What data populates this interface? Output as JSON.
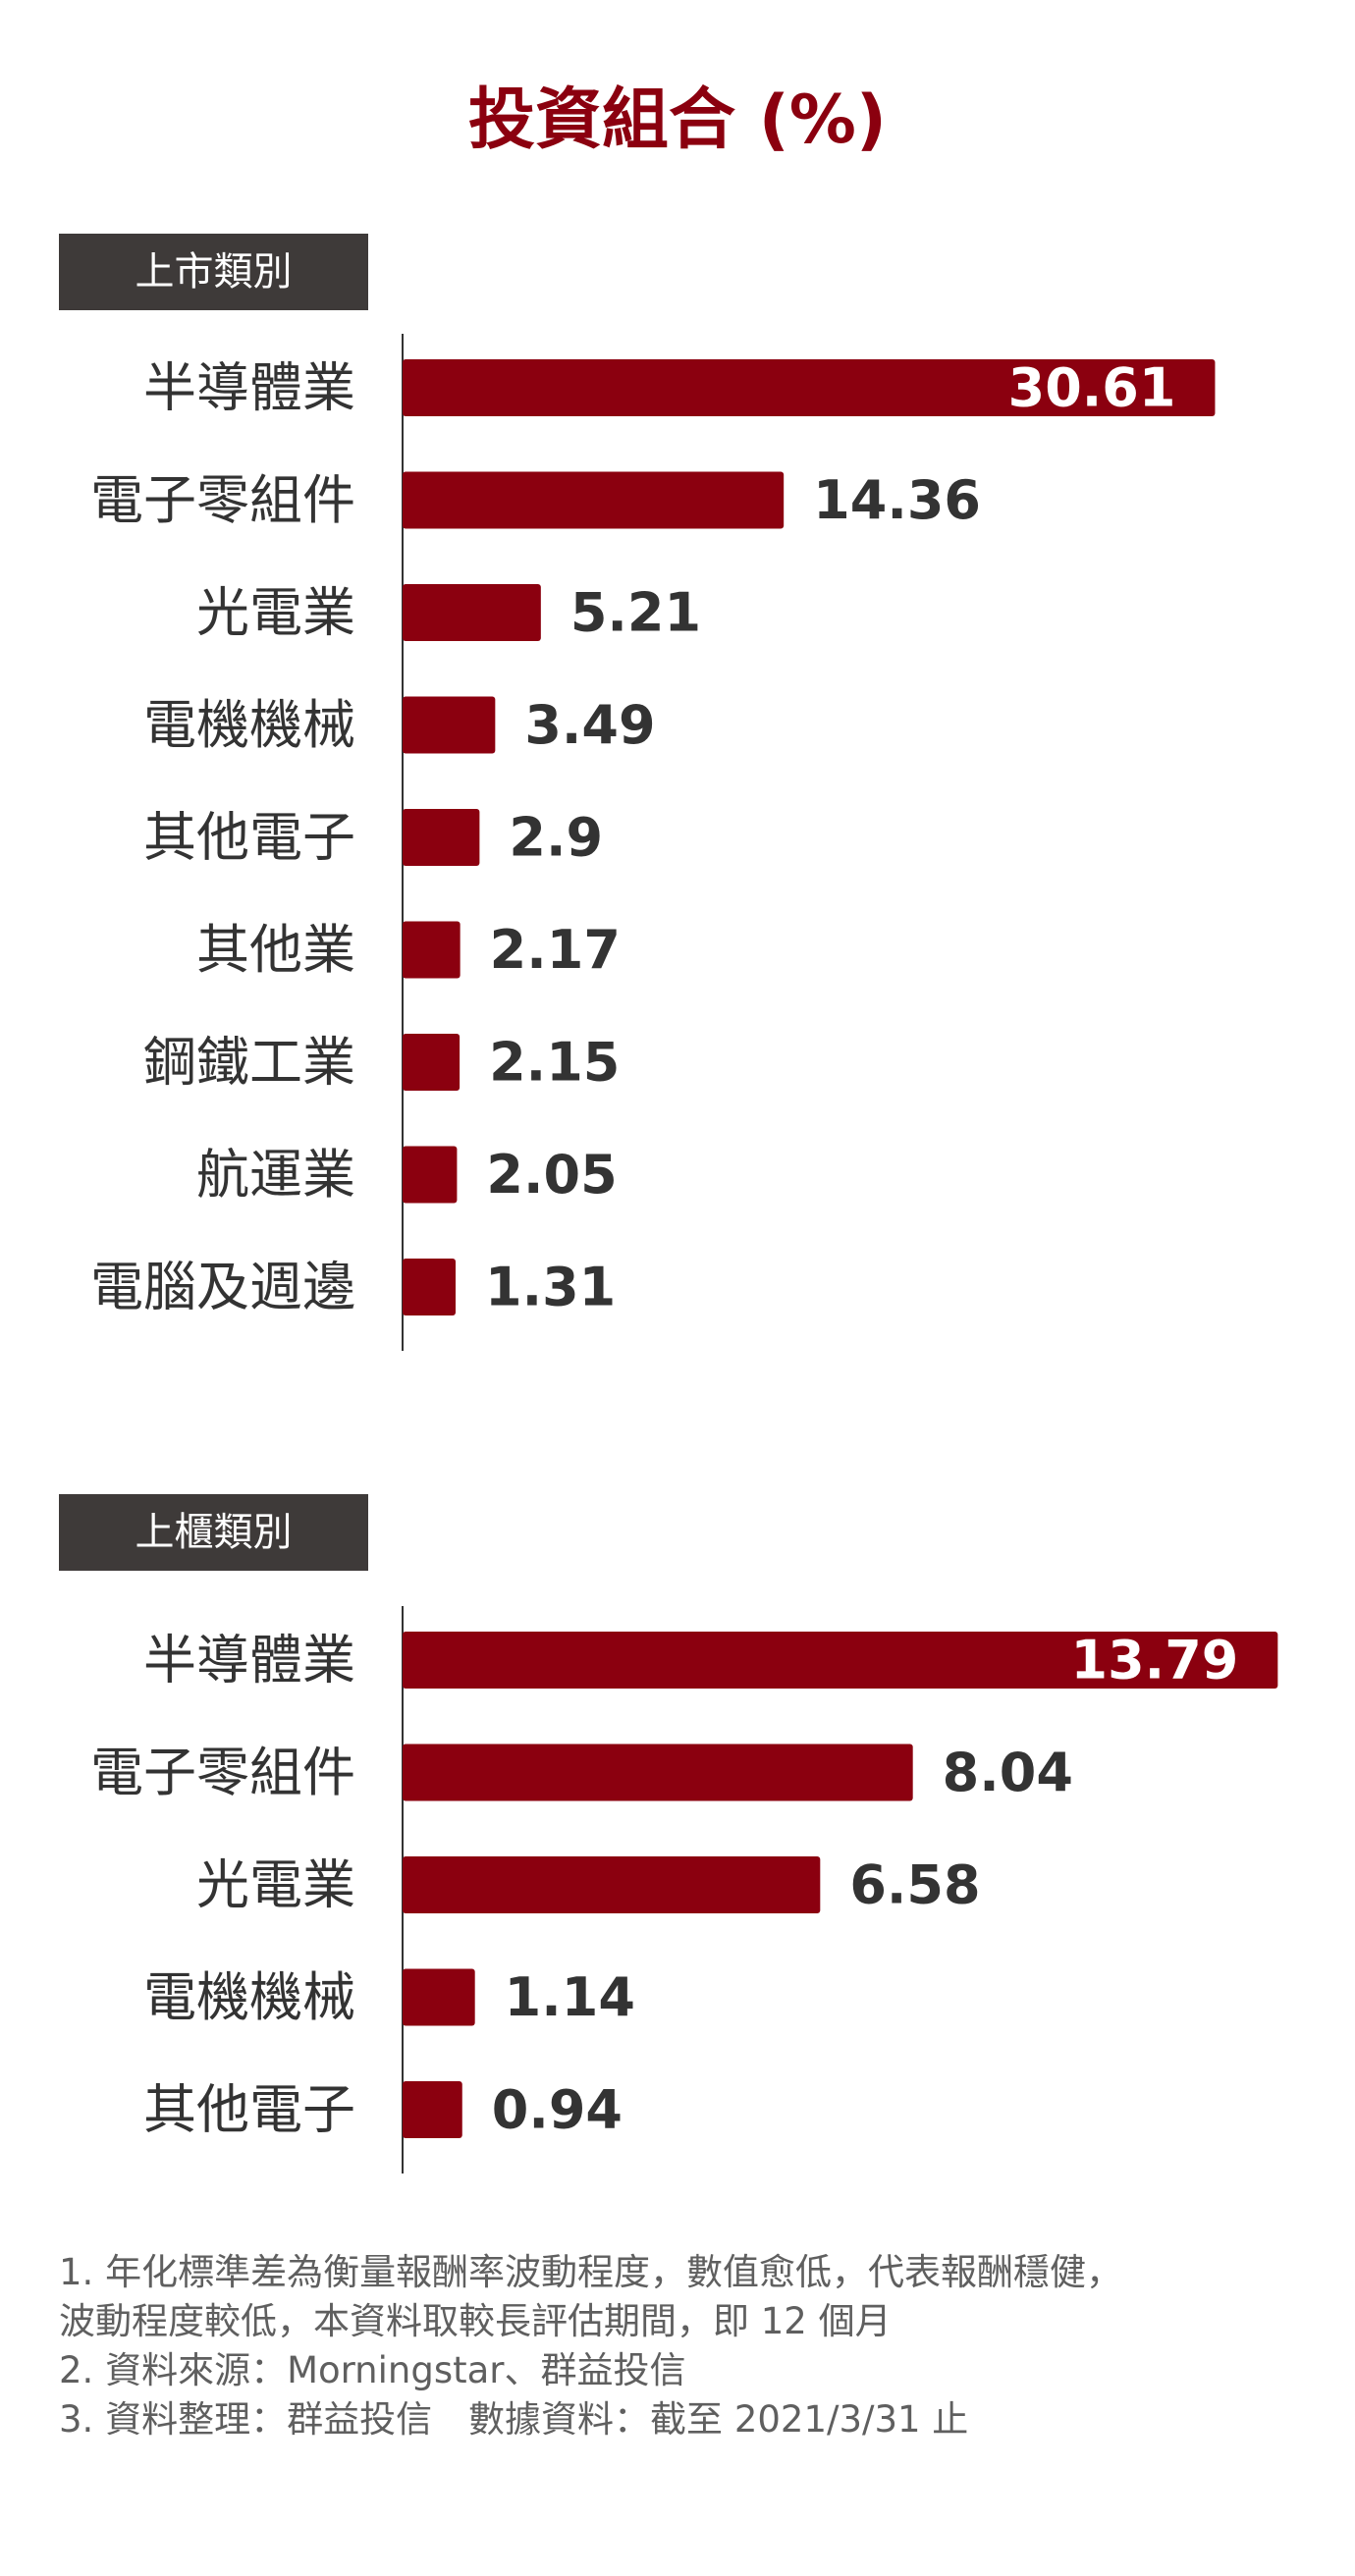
{
  "colors": {
    "bar": "#8b000f",
    "title": "#8b000f",
    "axis": "#333333",
    "label_bg": "#3e3a39"
  },
  "title": "投資組合 (%)",
  "chart_data": [
    {
      "type": "bar",
      "orientation": "horizontal",
      "section_label": "上市類別",
      "categories": [
        "半導體業",
        "電子零組件",
        "光電業",
        "電機機械",
        "其他電子",
        "其他業",
        "鋼鐵工業",
        "航運業",
        "電腦及週邊"
      ],
      "values": [
        30.61,
        14.36,
        5.21,
        3.49,
        2.9,
        2.17,
        2.15,
        2.05,
        1.31
      ],
      "value_labels": [
        "30.61",
        "14.36",
        "5.21",
        "3.49",
        "2.9",
        "2.17",
        "2.15",
        "2.05",
        "1.31"
      ],
      "xlim": [
        0,
        31
      ]
    },
    {
      "type": "bar",
      "orientation": "horizontal",
      "section_label": "上櫃類別",
      "categories": [
        "半導體業",
        "電子零組件",
        "光電業",
        "電機機械",
        "其他電子"
      ],
      "values": [
        13.79,
        8.04,
        6.58,
        1.14,
        0.94
      ],
      "value_labels": [
        "13.79",
        "8.04",
        "6.58",
        "1.14",
        "0.94"
      ],
      "xlim": [
        0,
        13.8
      ]
    }
  ],
  "notes": [
    "1. 年化標準差為衡量報酬率波動程度，數值愈低，代表報酬穩健，",
    "波動程度較低，本資料取較長評估期間，即 12 個月",
    "2. 資料來源：Morningstar、群益投信",
    "3. 資料整理：群益投信　數據資料：截至 2021/3/31 止"
  ]
}
